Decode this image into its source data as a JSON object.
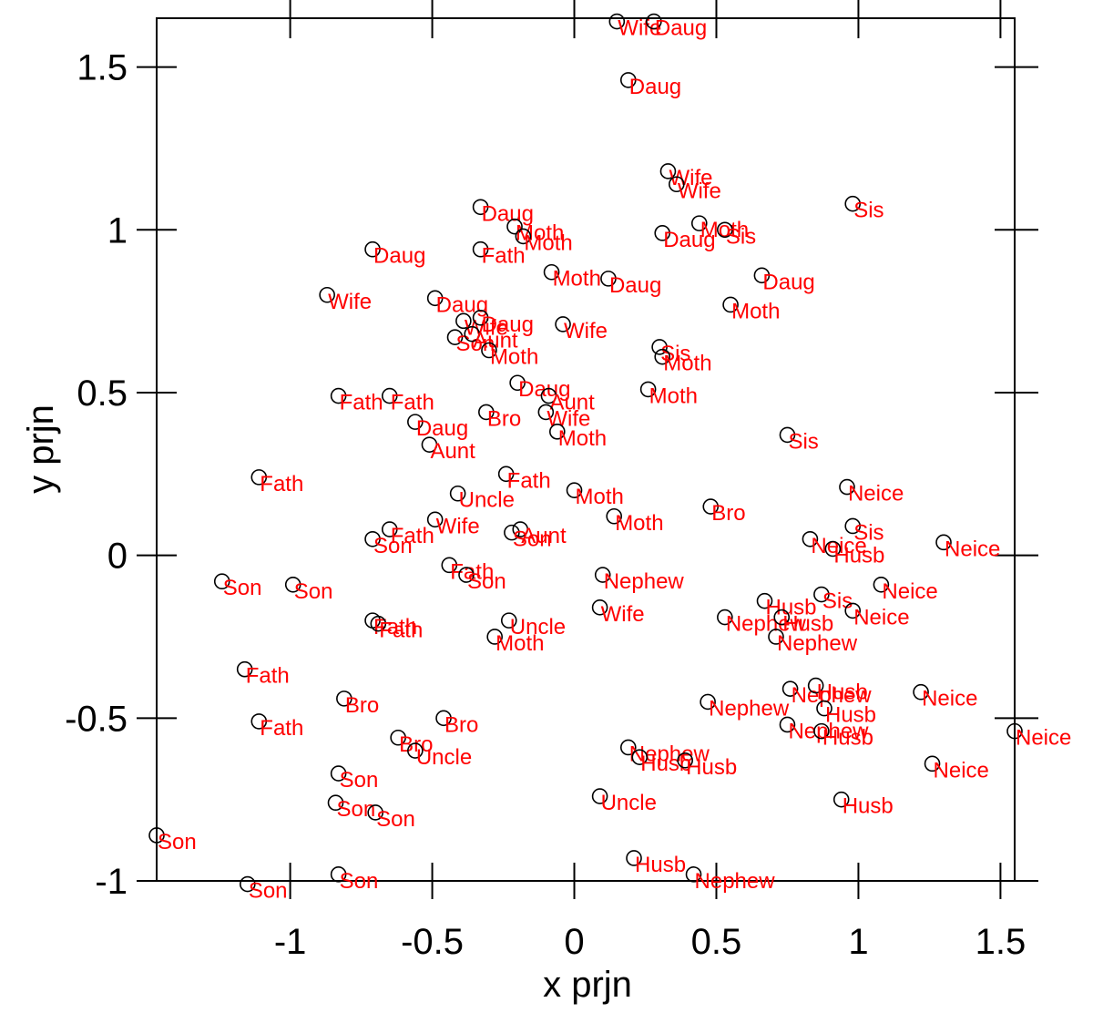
{
  "chart_data": {
    "type": "scatter",
    "xlabel": "x prjn",
    "ylabel": "y prjn",
    "xlim": [
      -1.47,
      1.55
    ],
    "ylim": [
      -1.0,
      1.65
    ],
    "x_ticks": [
      {
        "value": -1,
        "label": "-1"
      },
      {
        "value": -0.5,
        "label": "-0.5"
      },
      {
        "value": 0,
        "label": "0"
      },
      {
        "value": 0.5,
        "label": "0.5"
      },
      {
        "value": 1,
        "label": "1"
      },
      {
        "value": 1.5,
        "label": "1.5"
      }
    ],
    "y_ticks": [
      {
        "value": -1,
        "label": "-1"
      },
      {
        "value": -0.5,
        "label": "-0.5"
      },
      {
        "value": 0,
        "label": "0"
      },
      {
        "value": 0.5,
        "label": "0.5"
      },
      {
        "value": 1,
        "label": "1"
      },
      {
        "value": 1.5,
        "label": "1.5"
      }
    ],
    "grid": false,
    "marker_color": "#000000",
    "label_color": "#ff0000",
    "points": [
      {
        "x": 0.15,
        "y": 1.64,
        "label": "Wife"
      },
      {
        "x": 0.28,
        "y": 1.64,
        "label": "Daug"
      },
      {
        "x": 0.19,
        "y": 1.46,
        "label": "Daug"
      },
      {
        "x": 0.33,
        "y": 1.18,
        "label": "Wife"
      },
      {
        "x": 0.36,
        "y": 1.14,
        "label": "Wife"
      },
      {
        "x": 0.98,
        "y": 1.08,
        "label": "Sis"
      },
      {
        "x": -0.33,
        "y": 1.07,
        "label": "Daug"
      },
      {
        "x": -0.21,
        "y": 1.01,
        "label": "Moth"
      },
      {
        "x": -0.18,
        "y": 0.98,
        "label": "Moth"
      },
      {
        "x": 0.44,
        "y": 1.02,
        "label": "Moth"
      },
      {
        "x": 0.53,
        "y": 1.0,
        "label": "Sis"
      },
      {
        "x": 0.31,
        "y": 0.99,
        "label": "Daug"
      },
      {
        "x": -0.71,
        "y": 0.94,
        "label": "Daug"
      },
      {
        "x": -0.33,
        "y": 0.94,
        "label": "Fath"
      },
      {
        "x": -0.08,
        "y": 0.87,
        "label": "Moth"
      },
      {
        "x": 0.12,
        "y": 0.85,
        "label": "Daug"
      },
      {
        "x": 0.66,
        "y": 0.86,
        "label": "Daug"
      },
      {
        "x": -0.87,
        "y": 0.8,
        "label": "Wife"
      },
      {
        "x": -0.49,
        "y": 0.79,
        "label": "Daug"
      },
      {
        "x": 0.55,
        "y": 0.77,
        "label": "Moth"
      },
      {
        "x": -0.39,
        "y": 0.72,
        "label": "Wife"
      },
      {
        "x": -0.33,
        "y": 0.73,
        "label": "Daug"
      },
      {
        "x": -0.04,
        "y": 0.71,
        "label": "Wife"
      },
      {
        "x": -0.42,
        "y": 0.67,
        "label": "Son"
      },
      {
        "x": -0.36,
        "y": 0.68,
        "label": "Aunt"
      },
      {
        "x": -0.3,
        "y": 0.63,
        "label": "Moth"
      },
      {
        "x": 0.3,
        "y": 0.64,
        "label": "Sis"
      },
      {
        "x": 0.31,
        "y": 0.61,
        "label": "Moth"
      },
      {
        "x": -0.2,
        "y": 0.53,
        "label": "Daug"
      },
      {
        "x": 0.26,
        "y": 0.51,
        "label": "Moth"
      },
      {
        "x": -0.83,
        "y": 0.49,
        "label": "Fath"
      },
      {
        "x": -0.65,
        "y": 0.49,
        "label": "Fath"
      },
      {
        "x": -0.09,
        "y": 0.49,
        "label": "Aunt"
      },
      {
        "x": -0.31,
        "y": 0.44,
        "label": "Bro"
      },
      {
        "x": -0.1,
        "y": 0.44,
        "label": "Wife"
      },
      {
        "x": -0.56,
        "y": 0.41,
        "label": "Daug"
      },
      {
        "x": -0.06,
        "y": 0.38,
        "label": "Moth"
      },
      {
        "x": 0.75,
        "y": 0.37,
        "label": "Sis"
      },
      {
        "x": -0.51,
        "y": 0.34,
        "label": "Aunt"
      },
      {
        "x": -1.11,
        "y": 0.24,
        "label": "Fath"
      },
      {
        "x": -0.24,
        "y": 0.25,
        "label": "Fath"
      },
      {
        "x": 0.96,
        "y": 0.21,
        "label": "Neice"
      },
      {
        "x": -0.41,
        "y": 0.19,
        "label": "Uncle"
      },
      {
        "x": 0.0,
        "y": 0.2,
        "label": "Moth"
      },
      {
        "x": 0.48,
        "y": 0.15,
        "label": "Bro"
      },
      {
        "x": 0.14,
        "y": 0.12,
        "label": "Moth"
      },
      {
        "x": -0.49,
        "y": 0.11,
        "label": "Wife"
      },
      {
        "x": -0.65,
        "y": 0.08,
        "label": "Fath"
      },
      {
        "x": -0.19,
        "y": 0.08,
        "label": "Aunt"
      },
      {
        "x": 0.98,
        "y": 0.09,
        "label": "Sis"
      },
      {
        "x": -0.71,
        "y": 0.05,
        "label": "Son"
      },
      {
        "x": -0.22,
        "y": 0.07,
        "label": "Son"
      },
      {
        "x": 0.83,
        "y": 0.05,
        "label": "Neice"
      },
      {
        "x": 0.91,
        "y": 0.02,
        "label": "Husb"
      },
      {
        "x": 1.3,
        "y": 0.04,
        "label": "Neice"
      },
      {
        "x": -0.44,
        "y": -0.03,
        "label": "Fath"
      },
      {
        "x": -0.38,
        "y": -0.06,
        "label": "Son"
      },
      {
        "x": 0.1,
        "y": -0.06,
        "label": "Nephew"
      },
      {
        "x": -1.24,
        "y": -0.08,
        "label": "Son"
      },
      {
        "x": -0.99,
        "y": -0.09,
        "label": "Son"
      },
      {
        "x": 1.08,
        "y": -0.09,
        "label": "Neice"
      },
      {
        "x": 0.67,
        "y": -0.14,
        "label": "Husb"
      },
      {
        "x": 0.87,
        "y": -0.12,
        "label": "Sis"
      },
      {
        "x": 0.09,
        "y": -0.16,
        "label": "Wife"
      },
      {
        "x": 0.98,
        "y": -0.17,
        "label": "Neice"
      },
      {
        "x": -0.71,
        "y": -0.2,
        "label": "Fath"
      },
      {
        "x": -0.69,
        "y": -0.21,
        "label": "Fath"
      },
      {
        "x": -0.23,
        "y": -0.2,
        "label": "Uncle"
      },
      {
        "x": 0.53,
        "y": -0.19,
        "label": "Nephew"
      },
      {
        "x": 0.73,
        "y": -0.19,
        "label": "Husb"
      },
      {
        "x": -0.28,
        "y": -0.25,
        "label": "Moth"
      },
      {
        "x": 0.71,
        "y": -0.25,
        "label": "Nephew"
      },
      {
        "x": -1.16,
        "y": -0.35,
        "label": "Fath"
      },
      {
        "x": 0.76,
        "y": -0.41,
        "label": "Nephew"
      },
      {
        "x": 0.85,
        "y": -0.4,
        "label": "Husb"
      },
      {
        "x": 1.22,
        "y": -0.42,
        "label": "Neice"
      },
      {
        "x": -0.81,
        "y": -0.44,
        "label": "Bro"
      },
      {
        "x": 0.47,
        "y": -0.45,
        "label": "Nephew"
      },
      {
        "x": 0.88,
        "y": -0.47,
        "label": "Husb"
      },
      {
        "x": -0.46,
        "y": -0.5,
        "label": "Bro"
      },
      {
        "x": -1.11,
        "y": -0.51,
        "label": "Fath"
      },
      {
        "x": 0.75,
        "y": -0.52,
        "label": "Nephew"
      },
      {
        "x": 0.87,
        "y": -0.54,
        "label": "Husb"
      },
      {
        "x": 1.55,
        "y": -0.54,
        "label": "Neice"
      },
      {
        "x": -0.62,
        "y": -0.56,
        "label": "Bro"
      },
      {
        "x": -0.56,
        "y": -0.6,
        "label": "Uncle"
      },
      {
        "x": 0.19,
        "y": -0.59,
        "label": "Nephew"
      },
      {
        "x": 0.23,
        "y": -0.62,
        "label": "Husb"
      },
      {
        "x": 0.39,
        "y": -0.63,
        "label": "Husb"
      },
      {
        "x": 1.26,
        "y": -0.64,
        "label": "Neice"
      },
      {
        "x": -0.83,
        "y": -0.67,
        "label": "Son"
      },
      {
        "x": 0.09,
        "y": -0.74,
        "label": "Uncle"
      },
      {
        "x": 0.94,
        "y": -0.75,
        "label": "Husb"
      },
      {
        "x": -0.84,
        "y": -0.76,
        "label": "Son"
      },
      {
        "x": -0.7,
        "y": -0.79,
        "label": "Son"
      },
      {
        "x": -1.47,
        "y": -0.86,
        "label": "Son"
      },
      {
        "x": 0.21,
        "y": -0.93,
        "label": "Husb"
      },
      {
        "x": -0.83,
        "y": -0.98,
        "label": "Son"
      },
      {
        "x": 0.42,
        "y": -0.98,
        "label": "Nephew"
      },
      {
        "x": -1.15,
        "y": -1.01,
        "label": "Son"
      }
    ]
  }
}
